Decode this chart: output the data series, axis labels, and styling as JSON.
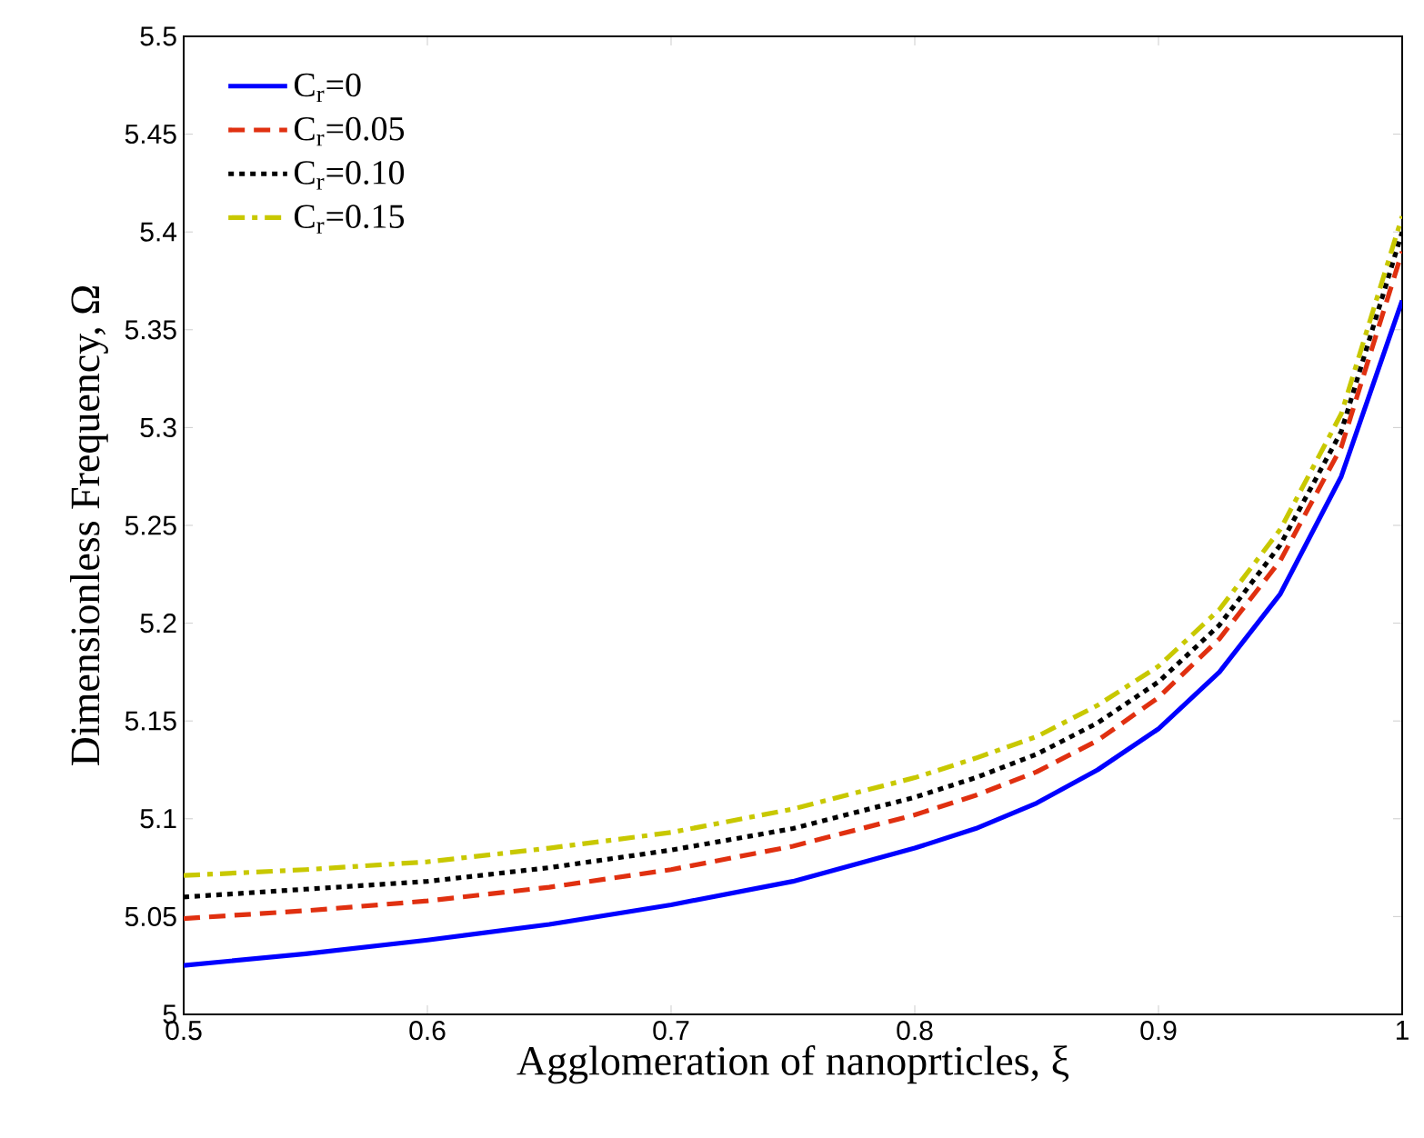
{
  "chart_data": {
    "type": "line",
    "xlabel": "Agglomeration of nanoprticles, ξ",
    "ylabel": "Dimensionless Frequency, Ω",
    "x": [
      0.5,
      0.55,
      0.6,
      0.65,
      0.7,
      0.75,
      0.8,
      0.825,
      0.85,
      0.875,
      0.9,
      0.925,
      0.95,
      0.975,
      1.0
    ],
    "series": [
      {
        "name": "C$_{r}$=0",
        "color": "#0000ff",
        "line_style": "solid",
        "values": [
          5.025,
          5.031,
          5.038,
          5.046,
          5.056,
          5.068,
          5.085,
          5.095,
          5.108,
          5.125,
          5.146,
          5.175,
          5.215,
          5.275,
          5.365
        ]
      },
      {
        "name": "C$_{r}$=0.05",
        "color": "#e03010",
        "line_style": "dashed",
        "values": [
          5.049,
          5.053,
          5.058,
          5.065,
          5.074,
          5.086,
          5.102,
          5.112,
          5.124,
          5.14,
          5.162,
          5.192,
          5.232,
          5.29,
          5.39
        ]
      },
      {
        "name": "C$_{r}$=0.10",
        "color": "#000000",
        "line_style": "dotted",
        "values": [
          5.06,
          5.064,
          5.068,
          5.075,
          5.084,
          5.095,
          5.111,
          5.121,
          5.133,
          5.149,
          5.17,
          5.199,
          5.24,
          5.298,
          5.4
        ]
      },
      {
        "name": "C$_{r}$=0.15",
        "color": "#c8c800",
        "line_style": "dashdot",
        "values": [
          5.071,
          5.074,
          5.078,
          5.085,
          5.093,
          5.105,
          5.121,
          5.131,
          5.142,
          5.158,
          5.178,
          5.207,
          5.248,
          5.307,
          5.408
        ]
      }
    ],
    "xlim": [
      0.5,
      1.0
    ],
    "ylim": [
      5.0,
      5.5
    ],
    "xticks": [
      0.5,
      0.6,
      0.7,
      0.8,
      0.9,
      1
    ],
    "yticks": [
      5,
      5.05,
      5.1,
      5.15,
      5.2,
      5.25,
      5.3,
      5.35,
      5.4,
      5.45,
      5.5
    ],
    "legend": "top left",
    "grid": false,
    "marker": "none"
  }
}
